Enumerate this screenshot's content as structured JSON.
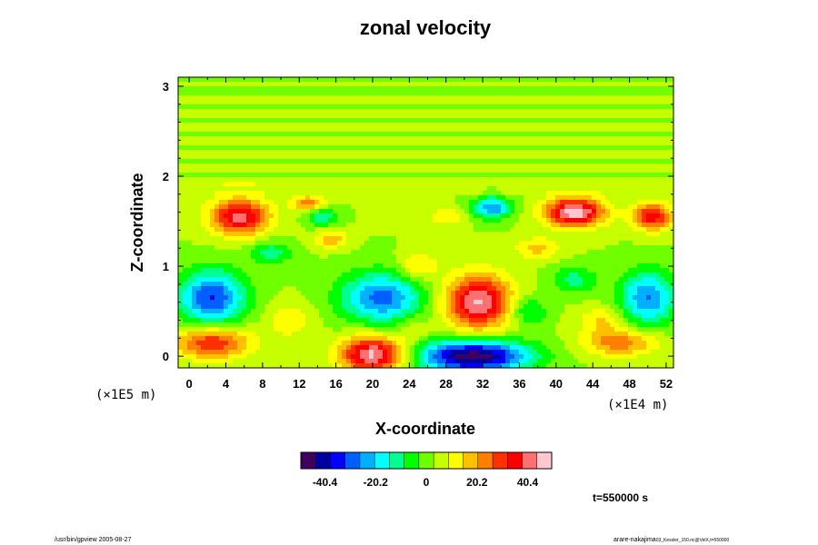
{
  "chart_data": {
    "type": "heatmap",
    "title": "zonal velocity",
    "xlabel": "X-coordinate",
    "ylabel": "Z-coordinate",
    "x_multiplier": "(×1E4 m)",
    "y_multiplier": "(×1E5 m)",
    "xlim": [
      -1.2,
      52.8
    ],
    "ylim": [
      -0.13,
      3.1
    ],
    "x_ticks": [
      "0",
      "4",
      "8",
      "12",
      "16",
      "20",
      "24",
      "28",
      "32",
      "36",
      "40",
      "44",
      "48",
      "52"
    ],
    "y_ticks": [
      "0",
      "1",
      "2",
      "3"
    ],
    "colorbar": {
      "range": [
        -50,
        50
      ],
      "ticks": [
        "-40.4",
        "-20.2",
        "0",
        "20.2",
        "40.4"
      ],
      "colors": [
        "#400060",
        "#0000a0",
        "#0000ff",
        "#0060ff",
        "#00b0ff",
        "#00ffff",
        "#00ff90",
        "#00ff00",
        "#70ff00",
        "#c8ff00",
        "#ffff00",
        "#ffc000",
        "#ff8000",
        "#ff3000",
        "#ff0000",
        "#ff7070",
        "#ffc8d0"
      ]
    },
    "background_value": 3,
    "features": [
      {
        "x": 2.5,
        "z": 0.65,
        "rx": 3.6,
        "rz": 0.3,
        "value": -36
      },
      {
        "x": 5.5,
        "z": 1.55,
        "rx": 3.2,
        "rz": 0.2,
        "value": 38
      },
      {
        "x": 2.5,
        "z": 0.15,
        "rx": 4.2,
        "rz": 0.18,
        "value": 30
      },
      {
        "x": 20,
        "z": 0.02,
        "rx": 3.5,
        "rz": 0.2,
        "value": 44
      },
      {
        "x": 21,
        "z": 0.65,
        "rx": 4.5,
        "rz": 0.28,
        "value": -32
      },
      {
        "x": 31.5,
        "z": 0.6,
        "rx": 3.6,
        "rz": 0.3,
        "value": 42
      },
      {
        "x": 31,
        "z": 0.0,
        "rx": 6.0,
        "rz": 0.18,
        "value": -52
      },
      {
        "x": 42,
        "z": 1.6,
        "rx": 3.2,
        "rz": 0.16,
        "value": 46
      },
      {
        "x": 50,
        "z": 0.65,
        "rx": 3.0,
        "rz": 0.3,
        "value": -30
      },
      {
        "x": 50.5,
        "z": 1.55,
        "rx": 2.2,
        "rz": 0.15,
        "value": 33
      },
      {
        "x": 47,
        "z": 0.15,
        "rx": 4.0,
        "rz": 0.15,
        "value": 22
      },
      {
        "x": 33,
        "z": 1.65,
        "rx": 2.0,
        "rz": 0.12,
        "value": -30
      },
      {
        "x": 14.5,
        "z": 1.55,
        "rx": 1.6,
        "rz": 0.1,
        "value": -18
      },
      {
        "x": 13,
        "z": 1.7,
        "rx": 1.8,
        "rz": 0.08,
        "value": 22
      },
      {
        "x": 9,
        "z": 1.15,
        "rx": 2.2,
        "rz": 0.12,
        "value": -16
      },
      {
        "x": 15.5,
        "z": 1.3,
        "rx": 1.8,
        "rz": 0.1,
        "value": 16
      },
      {
        "x": 25,
        "z": 1.0,
        "rx": 2.2,
        "rz": 0.15,
        "value": 14
      },
      {
        "x": 37,
        "z": 0.5,
        "rx": 2.0,
        "rz": 0.15,
        "value": -15
      },
      {
        "x": 38,
        "z": 1.2,
        "rx": 2.5,
        "rz": 0.12,
        "value": 14
      },
      {
        "x": 42,
        "z": 0.85,
        "rx": 2.5,
        "rz": 0.15,
        "value": -14
      },
      {
        "x": 28,
        "z": 1.55,
        "rx": 2.0,
        "rz": 0.1,
        "value": 12
      },
      {
        "x": 11,
        "z": 0.4,
        "rx": 2.5,
        "rz": 0.2,
        "value": 10
      },
      {
        "x": 45,
        "z": 0.4,
        "rx": 2.5,
        "rz": 0.15,
        "value": 12
      },
      {
        "x": 24.5,
        "z": 0.3,
        "rx": 1.5,
        "rz": 0.15,
        "value": 8
      }
    ]
  },
  "time_label": "t=550000 s",
  "footer_left": "/usr/bin/gpview 2005-08-27",
  "footer_right_user": "arare-nakajima",
  "footer_right_file": "03_Kessler_150.nc@VelX,t=550000"
}
